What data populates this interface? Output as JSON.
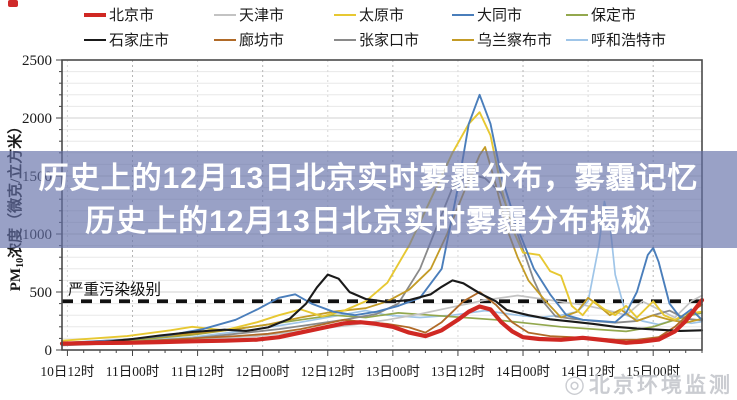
{
  "page": {
    "background": "#ffffff"
  },
  "record_indicator": {
    "color": "#cf2a2a"
  },
  "overlay": {
    "line1": "历史上的12月13日北京实时雾霾分布，雾霾记忆",
    "line2": "历史上的12月13日北京实时雾霾分布揭秘",
    "text_color": "#ffffff"
  },
  "watermark": {
    "icon": "◎",
    "text": "北京环境监测"
  },
  "chart_data": {
    "type": "line",
    "title": "",
    "ylabel": {
      "prefix": "PM",
      "sub": "10",
      "rest": "浓度（微克/立方米）"
    },
    "ylim": [
      0,
      2500
    ],
    "y_ticks": [
      0,
      500,
      1000,
      1500,
      2000,
      2500
    ],
    "x_span_hours": 118,
    "x_ticks": [
      {
        "label": "10日12时",
        "h": 1
      },
      {
        "label": "11日00时",
        "h": 13
      },
      {
        "label": "11日12时",
        "h": 25
      },
      {
        "label": "12日00时",
        "h": 37
      },
      {
        "label": "12日12时",
        "h": 49
      },
      {
        "label": "13日00时",
        "h": 61
      },
      {
        "label": "13日12时",
        "h": 73
      },
      {
        "label": "14日00时",
        "h": 85
      },
      {
        "label": "14日12时",
        "h": 97
      },
      {
        "label": "15日00时",
        "h": 109
      }
    ],
    "grid": {
      "horizontal_minor_step": 100,
      "horizontal_major_step": 500,
      "vertical_at_ticks": true
    },
    "severe_line": {
      "value": 420,
      "label": "严重污染级别",
      "color": "#111111"
    },
    "legend_position": "top",
    "draw_order": [
      9,
      4,
      1,
      7,
      8,
      2,
      3,
      6,
      5,
      0
    ],
    "series": [
      {
        "name": "北京市",
        "color": "#d02823",
        "width": 4.2,
        "points": [
          [
            0,
            55
          ],
          [
            6,
            60
          ],
          [
            12,
            62
          ],
          [
            18,
            68
          ],
          [
            24,
            75
          ],
          [
            30,
            80
          ],
          [
            36,
            90
          ],
          [
            40,
            110
          ],
          [
            44,
            150
          ],
          [
            48,
            190
          ],
          [
            52,
            230
          ],
          [
            55,
            240
          ],
          [
            58,
            225
          ],
          [
            61,
            200
          ],
          [
            64,
            150
          ],
          [
            67,
            120
          ],
          [
            70,
            170
          ],
          [
            73,
            260
          ],
          [
            75,
            330
          ],
          [
            77,
            375
          ],
          [
            79,
            350
          ],
          [
            81,
            240
          ],
          [
            83,
            160
          ],
          [
            85,
            110
          ],
          [
            88,
            95
          ],
          [
            92,
            88
          ],
          [
            96,
            105
          ],
          [
            100,
            85
          ],
          [
            104,
            62
          ],
          [
            107,
            72
          ],
          [
            110,
            90
          ],
          [
            113,
            160
          ],
          [
            115,
            250
          ],
          [
            117,
            370
          ],
          [
            118,
            430
          ]
        ]
      },
      {
        "name": "天津市",
        "color": "#c3c3c3",
        "width": 1.7,
        "points": [
          [
            0,
            45
          ],
          [
            12,
            60
          ],
          [
            24,
            90
          ],
          [
            36,
            120
          ],
          [
            44,
            160
          ],
          [
            48,
            185
          ],
          [
            54,
            220
          ],
          [
            60,
            260
          ],
          [
            66,
            310
          ],
          [
            72,
            370
          ],
          [
            78,
            430
          ],
          [
            84,
            470
          ],
          [
            90,
            430
          ],
          [
            96,
            390
          ],
          [
            100,
            350
          ],
          [
            104,
            300
          ],
          [
            107,
            420
          ],
          [
            110,
            350
          ],
          [
            113,
            280
          ],
          [
            116,
            420
          ],
          [
            118,
            470
          ]
        ]
      },
      {
        "name": "太原市",
        "color": "#e7c832",
        "width": 1.9,
        "points": [
          [
            0,
            80
          ],
          [
            12,
            120
          ],
          [
            20,
            170
          ],
          [
            24,
            200
          ],
          [
            30,
            170
          ],
          [
            36,
            240
          ],
          [
            40,
            300
          ],
          [
            44,
            350
          ],
          [
            48,
            290
          ],
          [
            52,
            340
          ],
          [
            56,
            420
          ],
          [
            60,
            580
          ],
          [
            64,
            900
          ],
          [
            68,
            1300
          ],
          [
            72,
            1700
          ],
          [
            75,
            1950
          ],
          [
            77,
            2050
          ],
          [
            79,
            1850
          ],
          [
            81,
            1400
          ],
          [
            83,
            1050
          ],
          [
            85,
            840
          ],
          [
            88,
            820
          ],
          [
            90,
            680
          ],
          [
            92,
            640
          ],
          [
            94,
            380
          ],
          [
            96,
            300
          ],
          [
            98,
            420
          ],
          [
            100,
            350
          ],
          [
            102,
            300
          ],
          [
            104,
            380
          ],
          [
            106,
            280
          ],
          [
            109,
            420
          ],
          [
            111,
            300
          ],
          [
            113,
            260
          ],
          [
            115,
            310
          ],
          [
            118,
            330
          ]
        ]
      },
      {
        "name": "大同市",
        "color": "#4a7ebb",
        "width": 1.9,
        "points": [
          [
            0,
            60
          ],
          [
            12,
            90
          ],
          [
            20,
            130
          ],
          [
            26,
            180
          ],
          [
            32,
            260
          ],
          [
            36,
            350
          ],
          [
            40,
            450
          ],
          [
            43,
            480
          ],
          [
            46,
            400
          ],
          [
            50,
            330
          ],
          [
            54,
            300
          ],
          [
            58,
            330
          ],
          [
            62,
            380
          ],
          [
            66,
            450
          ],
          [
            70,
            700
          ],
          [
            73,
            1400
          ],
          [
            75,
            1950
          ],
          [
            77,
            2200
          ],
          [
            79,
            1950
          ],
          [
            81,
            1500
          ],
          [
            84,
            1050
          ],
          [
            87,
            700
          ],
          [
            90,
            480
          ],
          [
            93,
            300
          ],
          [
            96,
            260
          ],
          [
            99,
            250
          ],
          [
            102,
            240
          ],
          [
            104,
            320
          ],
          [
            106,
            500
          ],
          [
            108,
            820
          ],
          [
            109,
            880
          ],
          [
            110,
            760
          ],
          [
            112,
            400
          ],
          [
            114,
            280
          ],
          [
            116,
            350
          ],
          [
            118,
            260
          ]
        ]
      },
      {
        "name": "保定市",
        "color": "#93a84e",
        "width": 1.7,
        "points": [
          [
            0,
            50
          ],
          [
            12,
            80
          ],
          [
            24,
            130
          ],
          [
            32,
            180
          ],
          [
            38,
            220
          ],
          [
            44,
            260
          ],
          [
            50,
            300
          ],
          [
            56,
            280
          ],
          [
            62,
            320
          ],
          [
            68,
            300
          ],
          [
            74,
            280
          ],
          [
            80,
            260
          ],
          [
            86,
            230
          ],
          [
            92,
            200
          ],
          [
            98,
            180
          ],
          [
            104,
            160
          ],
          [
            109,
            200
          ],
          [
            113,
            260
          ],
          [
            116,
            300
          ],
          [
            118,
            320
          ]
        ]
      },
      {
        "name": "石家庄市",
        "color": "#1a1a1a",
        "width": 2.1,
        "points": [
          [
            0,
            50
          ],
          [
            8,
            70
          ],
          [
            13,
            95
          ],
          [
            18,
            125
          ],
          [
            24,
            155
          ],
          [
            30,
            175
          ],
          [
            34,
            165
          ],
          [
            38,
            195
          ],
          [
            42,
            270
          ],
          [
            45,
            400
          ],
          [
            47,
            540
          ],
          [
            49,
            650
          ],
          [
            51,
            615
          ],
          [
            53,
            500
          ],
          [
            56,
            440
          ],
          [
            60,
            415
          ],
          [
            64,
            430
          ],
          [
            68,
            480
          ],
          [
            70,
            545
          ],
          [
            72,
            600
          ],
          [
            74,
            575
          ],
          [
            77,
            490
          ],
          [
            80,
            420
          ],
          [
            82,
            345
          ],
          [
            86,
            300
          ],
          [
            90,
            265
          ],
          [
            94,
            245
          ],
          [
            98,
            225
          ],
          [
            102,
            200
          ],
          [
            106,
            185
          ],
          [
            110,
            175
          ],
          [
            114,
            165
          ],
          [
            118,
            170
          ]
        ]
      },
      {
        "name": "廊坊市",
        "color": "#b06a28",
        "width": 1.8,
        "points": [
          [
            0,
            50
          ],
          [
            12,
            70
          ],
          [
            24,
            100
          ],
          [
            32,
            120
          ],
          [
            38,
            140
          ],
          [
            44,
            180
          ],
          [
            48,
            220
          ],
          [
            52,
            260
          ],
          [
            56,
            240
          ],
          [
            60,
            225
          ],
          [
            64,
            195
          ],
          [
            67,
            150
          ],
          [
            70,
            240
          ],
          [
            74,
            420
          ],
          [
            77,
            500
          ],
          [
            80,
            390
          ],
          [
            83,
            240
          ],
          [
            86,
            150
          ],
          [
            90,
            120
          ],
          [
            94,
            110
          ],
          [
            98,
            100
          ],
          [
            102,
            90
          ],
          [
            106,
            88
          ],
          [
            110,
            110
          ],
          [
            113,
            200
          ],
          [
            116,
            330
          ],
          [
            118,
            390
          ]
        ]
      },
      {
        "name": "张家口市",
        "color": "#8a8a8a",
        "width": 1.8,
        "points": [
          [
            0,
            40
          ],
          [
            12,
            60
          ],
          [
            24,
            100
          ],
          [
            32,
            140
          ],
          [
            40,
            180
          ],
          [
            46,
            220
          ],
          [
            52,
            260
          ],
          [
            58,
            310
          ],
          [
            62,
            400
          ],
          [
            66,
            700
          ],
          [
            69,
            1050
          ],
          [
            72,
            1400
          ],
          [
            75,
            1520
          ],
          [
            78,
            1480
          ],
          [
            81,
            1350
          ],
          [
            84,
            1000
          ],
          [
            87,
            600
          ],
          [
            89,
            400
          ],
          [
            91,
            290
          ],
          [
            94,
            270
          ],
          [
            98,
            250
          ],
          [
            102,
            235
          ],
          [
            106,
            250
          ],
          [
            109,
            300
          ],
          [
            112,
            340
          ],
          [
            115,
            270
          ],
          [
            118,
            255
          ]
        ]
      },
      {
        "name": "乌兰察布市",
        "color": "#c39b26",
        "width": 1.8,
        "points": [
          [
            0,
            60
          ],
          [
            12,
            90
          ],
          [
            24,
            140
          ],
          [
            32,
            180
          ],
          [
            38,
            220
          ],
          [
            44,
            280
          ],
          [
            50,
            330
          ],
          [
            56,
            360
          ],
          [
            60,
            420
          ],
          [
            64,
            520
          ],
          [
            68,
            700
          ],
          [
            71,
            1000
          ],
          [
            74,
            1350
          ],
          [
            77,
            1680
          ],
          [
            78,
            1750
          ],
          [
            80,
            1420
          ],
          [
            82,
            1050
          ],
          [
            84,
            800
          ],
          [
            86,
            600
          ],
          [
            89,
            430
          ],
          [
            92,
            280
          ],
          [
            95,
            330
          ],
          [
            97,
            450
          ],
          [
            99,
            380
          ],
          [
            101,
            300
          ],
          [
            103,
            350
          ],
          [
            106,
            250
          ],
          [
            109,
            300
          ],
          [
            112,
            260
          ],
          [
            115,
            235
          ],
          [
            118,
            270
          ]
        ]
      },
      {
        "name": "呼和浩特市",
        "color": "#9fc5e8",
        "width": 1.7,
        "points": [
          [
            0,
            50
          ],
          [
            12,
            70
          ],
          [
            24,
            110
          ],
          [
            36,
            180
          ],
          [
            44,
            240
          ],
          [
            50,
            290
          ],
          [
            56,
            340
          ],
          [
            60,
            300
          ],
          [
            66,
            280
          ],
          [
            72,
            300
          ],
          [
            78,
            340
          ],
          [
            84,
            300
          ],
          [
            88,
            280
          ],
          [
            92,
            300
          ],
          [
            95,
            330
          ],
          [
            97,
            420
          ],
          [
            99,
            900
          ],
          [
            100,
            1280
          ],
          [
            101,
            1100
          ],
          [
            102,
            650
          ],
          [
            104,
            300
          ],
          [
            107,
            250
          ],
          [
            110,
            220
          ],
          [
            113,
            260
          ],
          [
            116,
            230
          ],
          [
            118,
            245
          ]
        ]
      }
    ]
  }
}
